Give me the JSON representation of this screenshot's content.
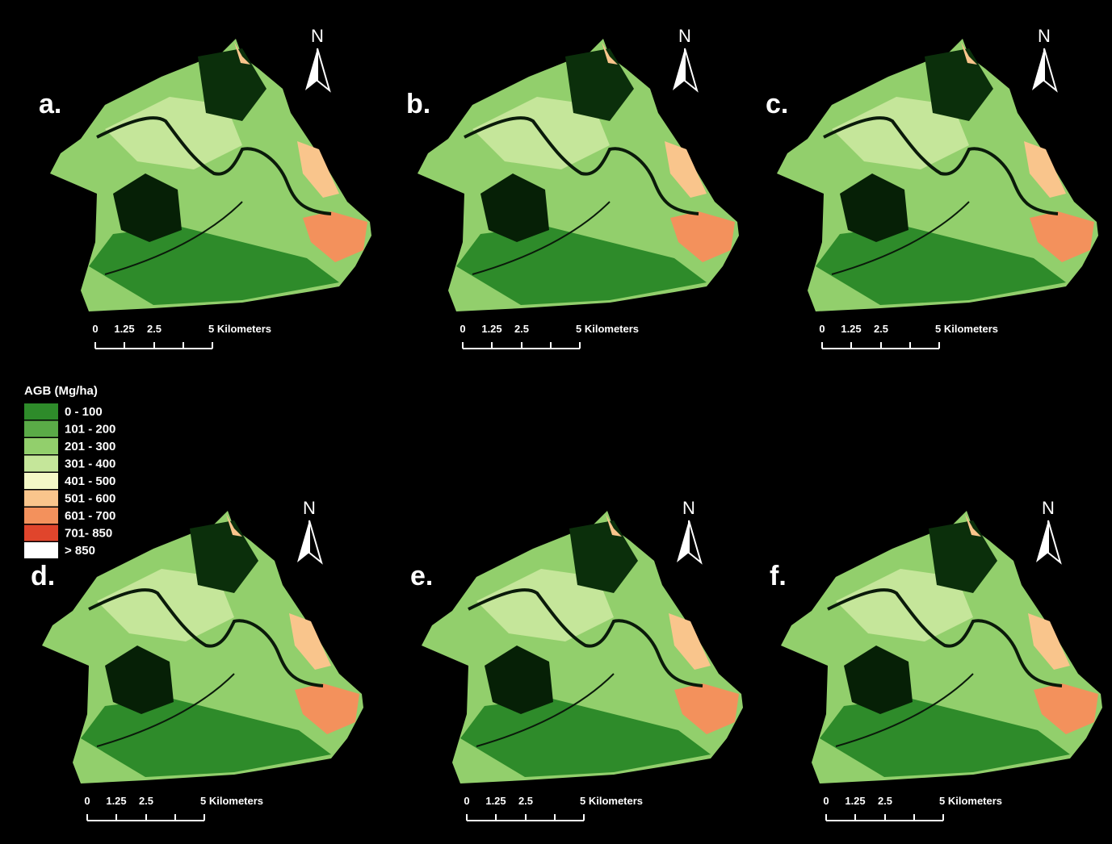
{
  "legend": {
    "title": "AGB (Mg/ha)",
    "items": [
      {
        "label": "0 - 100",
        "color": "#2e8b2a"
      },
      {
        "label": "101 - 200",
        "color": "#5aab47"
      },
      {
        "label": "201 - 300",
        "color": "#92cf6c"
      },
      {
        "label": "301 - 400",
        "color": "#c5e69a"
      },
      {
        "label": "401 - 500",
        "color": "#f4f8c6"
      },
      {
        "label": "501 - 600",
        "color": "#f9c58c"
      },
      {
        "label": "601 - 700",
        "color": "#f3915c"
      },
      {
        "label": "701- 850",
        "color": "#e0452c"
      },
      {
        "label": "> 850",
        "color": "#ffffff"
      }
    ]
  },
  "panels": [
    {
      "label": "a.",
      "north": "N",
      "scale": [
        "0",
        "1.25",
        "2.5",
        "5 Kilometers"
      ]
    },
    {
      "label": "b.",
      "north": "N",
      "scale": [
        "0",
        "1.25",
        "2.5",
        "5 Kilometers"
      ]
    },
    {
      "label": "c.",
      "north": "N",
      "scale": [
        "0",
        "1.25",
        "2.5",
        "5 Kilometers"
      ]
    },
    {
      "label": "d.",
      "north": "N",
      "scale": [
        "0",
        "1.25",
        "2.5",
        "5 Kilometers"
      ]
    },
    {
      "label": "e.",
      "north": "N",
      "scale": [
        "0",
        "1.25",
        "2.5",
        "5 Kilometers"
      ]
    },
    {
      "label": "f.",
      "north": "N",
      "scale": [
        "0",
        "1.25",
        "2.5",
        "5 Kilometers"
      ]
    }
  ]
}
